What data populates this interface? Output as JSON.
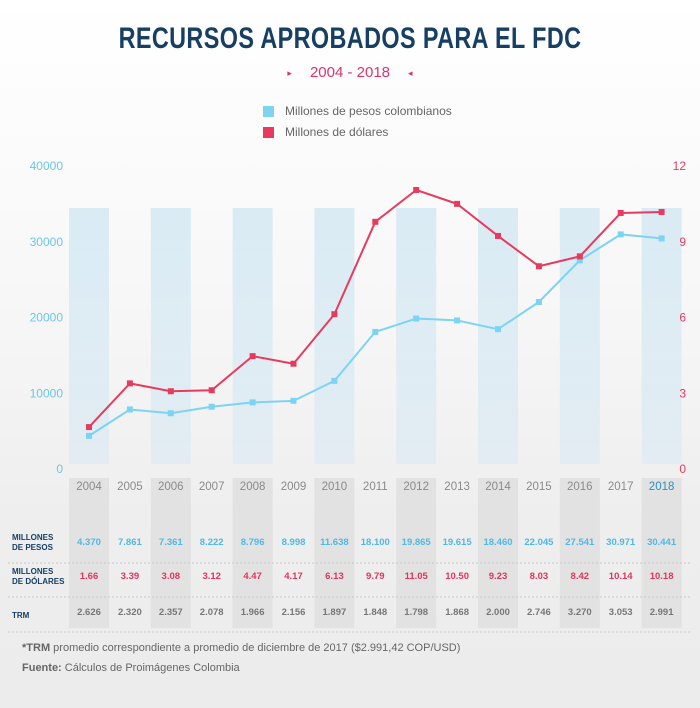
{
  "header": {
    "title": "RECURSOS APROBADOS PARA EL FDC",
    "subtitle": "2004 - 2018",
    "left_marker": "▸",
    "right_marker": "◂"
  },
  "legend": {
    "pesos": "Millones de pesos colombianos",
    "dolares": "Millones de dólares"
  },
  "colors": {
    "pesos": "#7dd3f3",
    "dolares": "#e63b5e",
    "title": "#163f63",
    "subtitle": "#d8356a",
    "band": "#d6e9f3"
  },
  "chart_data": {
    "type": "line",
    "title": "RECURSOS APROBADOS PARA EL FDC",
    "subtitle": "2004 - 2018",
    "x": [
      "2004",
      "2005",
      "2006",
      "2007",
      "2008",
      "2009",
      "2010",
      "2011",
      "2012",
      "2013",
      "2014",
      "2015",
      "2016",
      "2017",
      "2018"
    ],
    "series": [
      {
        "name": "Millones de pesos colombianos",
        "axis": "left",
        "values": [
          4370,
          7861,
          7361,
          8222,
          8796,
          8998,
          11638,
          18100,
          19865,
          19615,
          18460,
          22045,
          27541,
          30971,
          30441
        ]
      },
      {
        "name": "Millones de dólares",
        "axis": "right",
        "values": [
          1.66,
          3.39,
          3.08,
          3.12,
          4.47,
          4.17,
          6.13,
          9.79,
          11.05,
          10.5,
          9.23,
          8.03,
          8.42,
          10.14,
          10.18
        ]
      }
    ],
    "left_axis": {
      "ticks": [
        "0",
        "10000",
        "20000",
        "30000",
        "40000"
      ],
      "ylim": [
        0,
        40000
      ]
    },
    "right_axis": {
      "ticks": [
        "0",
        "3",
        "6",
        "9",
        "12"
      ],
      "ylim": [
        0,
        12
      ]
    },
    "grid": false,
    "legend_position": "top-center"
  },
  "table": {
    "rows": [
      {
        "label": [
          "MILLONES",
          "DE PESOS"
        ],
        "values": [
          "4.370",
          "7.861",
          "7.361",
          "8.222",
          "8.796",
          "8.998",
          "11.638",
          "18.100",
          "19.865",
          "19.615",
          "18.460",
          "22.045",
          "27.541",
          "30.971",
          "30.441"
        ]
      },
      {
        "label": [
          "MILLONES",
          "DE DÓLARES"
        ],
        "values": [
          "1.66",
          "3.39",
          "3.08",
          "3.12",
          "4.47",
          "4.17",
          "6.13",
          "9.79",
          "11.05",
          "10.50",
          "9.23",
          "8.03",
          "8.42",
          "10.14",
          "10.18"
        ]
      },
      {
        "label": [
          "TRM"
        ],
        "values": [
          "2.626",
          "2.320",
          "2.357",
          "2.078",
          "1.966",
          "2.156",
          "1.897",
          "1.848",
          "1.798",
          "1.868",
          "2.000",
          "2.746",
          "3.270",
          "3.053",
          "2.991"
        ]
      }
    ]
  },
  "footer": {
    "trm_prefix": "*TRM",
    "trm_note": " promedio correspondiente a promedio de diciembre de 2017 ($2.991,42 COP/USD)",
    "source_label": "Fuente:",
    "source_text": " Cálculos de Proimágenes Colombia"
  }
}
